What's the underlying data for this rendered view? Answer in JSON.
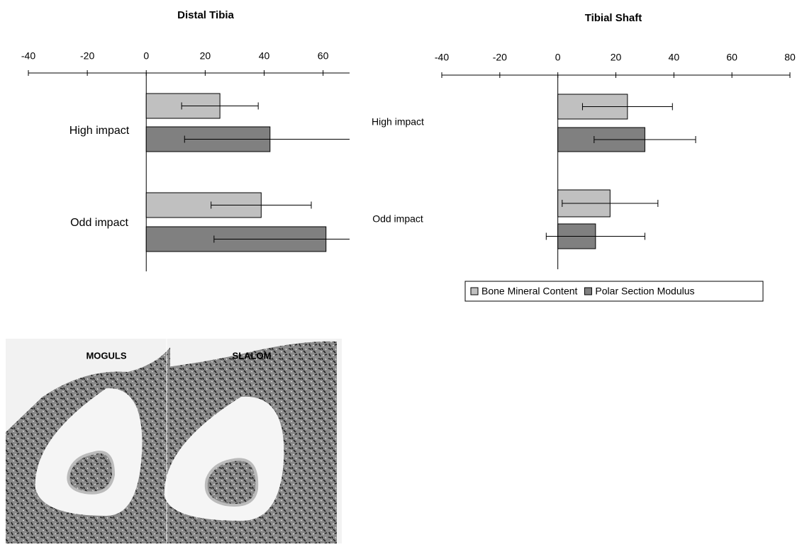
{
  "chart_data": [
    {
      "type": "bar",
      "orientation": "horizontal",
      "title": "Distal Tibia",
      "categories": [
        "High impact",
        "Odd impact"
      ],
      "series": [
        {
          "color": "#c0c0c0",
          "values": [
            25,
            39
          ],
          "errors": [
            13,
            17
          ]
        },
        {
          "color": "#808080",
          "values": [
            42,
            61
          ],
          "errors": [
            29,
            38
          ]
        }
      ],
      "xlim": [
        -40,
        69
      ],
      "xticks": [
        -40,
        -20,
        0,
        20,
        40,
        60
      ]
    },
    {
      "type": "bar",
      "orientation": "horizontal",
      "title": "Tibial Shaft",
      "categories": [
        "High impact",
        "Odd impact"
      ],
      "series": [
        {
          "name": "Bone Mineral Content",
          "color": "#c0c0c0",
          "values": [
            24,
            18
          ],
          "errors": [
            15.5,
            16.5
          ]
        },
        {
          "name": "Polar Section Modulus",
          "color": "#808080",
          "values": [
            30,
            13
          ],
          "errors": [
            17.5,
            17
          ]
        }
      ],
      "xlim": [
        -40,
        80
      ],
      "xticks": [
        -40,
        -20,
        0,
        20,
        40,
        60,
        80
      ],
      "legend": "bottom"
    }
  ],
  "image": {
    "labels": [
      "MOGULS",
      "SLALOM"
    ]
  }
}
